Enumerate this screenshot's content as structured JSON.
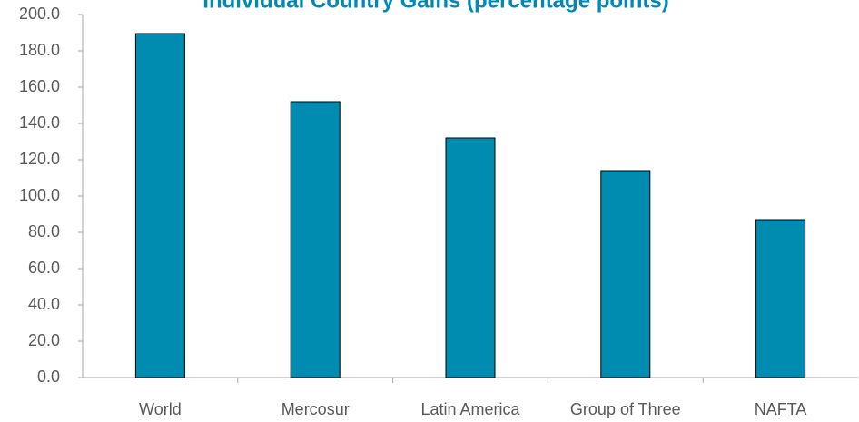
{
  "chart_data": {
    "type": "bar",
    "title": "Individual Country Gains (percentage points)",
    "categories": [
      "World",
      "Mercosur",
      "Latin America",
      "Group of Three",
      "NAFTA"
    ],
    "values": [
      189.5,
      152,
      132,
      114,
      87
    ],
    "color": "#008bb0",
    "ylim": [
      0,
      200
    ],
    "yticks": [
      {
        "value": 0,
        "label": "0.0"
      },
      {
        "value": 20,
        "label": "20.0"
      },
      {
        "value": 40,
        "label": "40.0"
      },
      {
        "value": 60,
        "label": "60.0"
      },
      {
        "value": 80,
        "label": "80.0"
      },
      {
        "value": 100,
        "label": "100.0"
      },
      {
        "value": 120,
        "label": "120.0"
      },
      {
        "value": 140,
        "label": "140.0"
      },
      {
        "value": 160,
        "label": "160.0"
      },
      {
        "value": 180,
        "label": "180.0"
      },
      {
        "value": 200,
        "label": "200.0"
      }
    ],
    "grid": false
  }
}
